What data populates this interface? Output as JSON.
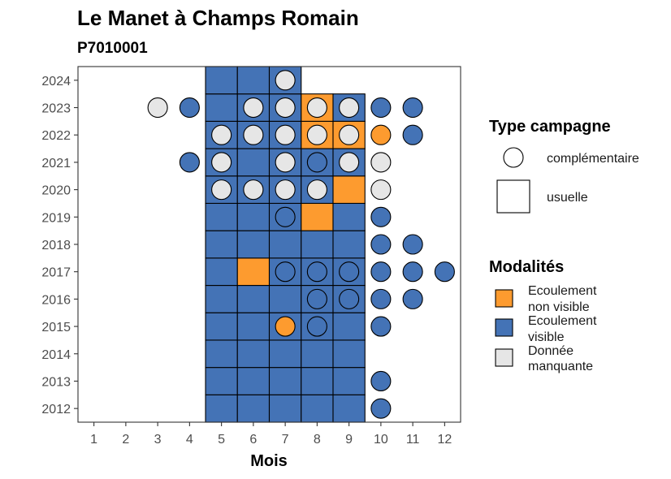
{
  "chart_data": {
    "type": "heatmap",
    "title": "Le Manet à Champs Romain",
    "subtitle": "P7010001",
    "xlabel": "Mois",
    "ylabel": "",
    "x_ticks": [
      "1",
      "2",
      "3",
      "4",
      "5",
      "6",
      "7",
      "8",
      "9",
      "10",
      "11",
      "12"
    ],
    "y_ticks": [
      "2012",
      "2013",
      "2014",
      "2015",
      "2016",
      "2017",
      "2018",
      "2019",
      "2020",
      "2021",
      "2022",
      "2023",
      "2024"
    ],
    "xlim": [
      0.5,
      12.5
    ],
    "ylim": [
      2011.5,
      2024.5
    ],
    "grid": false,
    "legend_position": "right",
    "colors": {
      "ecoulement_non_visible": "#fd9b2f",
      "ecoulement_visible": "#4473b6",
      "donnee_manquante": "#e6e6e6"
    },
    "legend_type": {
      "title": "Type campagne",
      "items": [
        {
          "key": "complementaire",
          "label": "complémentaire",
          "shape": "circle"
        },
        {
          "key": "usuelle",
          "label": "usuelle",
          "shape": "square"
        }
      ]
    },
    "legend_modalites": {
      "title": "Modalités",
      "items": [
        {
          "key": "ecoulement_non_visible",
          "label_lines": [
            "Ecoulement",
            "non visible"
          ]
        },
        {
          "key": "ecoulement_visible",
          "label_lines": [
            "Ecoulement",
            "visible"
          ]
        },
        {
          "key": "donnee_manquante",
          "label_lines": [
            "Donnée",
            "manquante"
          ]
        }
      ]
    },
    "usuelle": [
      {
        "year": 2012,
        "month": 5,
        "m": "ecoulement_visible"
      },
      {
        "year": 2012,
        "month": 6,
        "m": "ecoulement_visible"
      },
      {
        "year": 2012,
        "month": 7,
        "m": "ecoulement_visible"
      },
      {
        "year": 2012,
        "month": 8,
        "m": "ecoulement_visible"
      },
      {
        "year": 2012,
        "month": 9,
        "m": "ecoulement_visible"
      },
      {
        "year": 2013,
        "month": 5,
        "m": "ecoulement_visible"
      },
      {
        "year": 2013,
        "month": 6,
        "m": "ecoulement_visible"
      },
      {
        "year": 2013,
        "month": 7,
        "m": "ecoulement_visible"
      },
      {
        "year": 2013,
        "month": 8,
        "m": "ecoulement_visible"
      },
      {
        "year": 2013,
        "month": 9,
        "m": "ecoulement_visible"
      },
      {
        "year": 2014,
        "month": 5,
        "m": "ecoulement_visible"
      },
      {
        "year": 2014,
        "month": 6,
        "m": "ecoulement_visible"
      },
      {
        "year": 2014,
        "month": 7,
        "m": "ecoulement_visible"
      },
      {
        "year": 2014,
        "month": 8,
        "m": "ecoulement_visible"
      },
      {
        "year": 2014,
        "month": 9,
        "m": "ecoulement_visible"
      },
      {
        "year": 2015,
        "month": 5,
        "m": "ecoulement_visible"
      },
      {
        "year": 2015,
        "month": 6,
        "m": "ecoulement_visible"
      },
      {
        "year": 2015,
        "month": 7,
        "m": "ecoulement_visible"
      },
      {
        "year": 2015,
        "month": 8,
        "m": "ecoulement_visible"
      },
      {
        "year": 2015,
        "month": 9,
        "m": "ecoulement_visible"
      },
      {
        "year": 2016,
        "month": 5,
        "m": "ecoulement_visible"
      },
      {
        "year": 2016,
        "month": 6,
        "m": "ecoulement_visible"
      },
      {
        "year": 2016,
        "month": 7,
        "m": "ecoulement_visible"
      },
      {
        "year": 2016,
        "month": 8,
        "m": "ecoulement_visible"
      },
      {
        "year": 2016,
        "month": 9,
        "m": "ecoulement_visible"
      },
      {
        "year": 2017,
        "month": 5,
        "m": "ecoulement_visible"
      },
      {
        "year": 2017,
        "month": 6,
        "m": "ecoulement_non_visible"
      },
      {
        "year": 2017,
        "month": 7,
        "m": "ecoulement_visible"
      },
      {
        "year": 2017,
        "month": 8,
        "m": "ecoulement_visible"
      },
      {
        "year": 2017,
        "month": 9,
        "m": "ecoulement_visible"
      },
      {
        "year": 2018,
        "month": 5,
        "m": "ecoulement_visible"
      },
      {
        "year": 2018,
        "month": 6,
        "m": "ecoulement_visible"
      },
      {
        "year": 2018,
        "month": 7,
        "m": "ecoulement_visible"
      },
      {
        "year": 2018,
        "month": 8,
        "m": "ecoulement_visible"
      },
      {
        "year": 2018,
        "month": 9,
        "m": "ecoulement_visible"
      },
      {
        "year": 2019,
        "month": 5,
        "m": "ecoulement_visible"
      },
      {
        "year": 2019,
        "month": 6,
        "m": "ecoulement_visible"
      },
      {
        "year": 2019,
        "month": 7,
        "m": "ecoulement_visible"
      },
      {
        "year": 2019,
        "month": 8,
        "m": "ecoulement_non_visible"
      },
      {
        "year": 2019,
        "month": 9,
        "m": "ecoulement_visible"
      },
      {
        "year": 2020,
        "month": 5,
        "m": "ecoulement_visible"
      },
      {
        "year": 2020,
        "month": 6,
        "m": "ecoulement_visible"
      },
      {
        "year": 2020,
        "month": 7,
        "m": "ecoulement_visible"
      },
      {
        "year": 2020,
        "month": 8,
        "m": "ecoulement_visible"
      },
      {
        "year": 2020,
        "month": 9,
        "m": "ecoulement_non_visible"
      },
      {
        "year": 2021,
        "month": 5,
        "m": "ecoulement_visible"
      },
      {
        "year": 2021,
        "month": 6,
        "m": "ecoulement_visible"
      },
      {
        "year": 2021,
        "month": 7,
        "m": "ecoulement_visible"
      },
      {
        "year": 2021,
        "month": 8,
        "m": "ecoulement_visible"
      },
      {
        "year": 2021,
        "month": 9,
        "m": "ecoulement_visible"
      },
      {
        "year": 2022,
        "month": 5,
        "m": "ecoulement_visible"
      },
      {
        "year": 2022,
        "month": 6,
        "m": "ecoulement_visible"
      },
      {
        "year": 2022,
        "month": 7,
        "m": "ecoulement_visible"
      },
      {
        "year": 2022,
        "month": 8,
        "m": "ecoulement_non_visible"
      },
      {
        "year": 2022,
        "month": 9,
        "m": "ecoulement_non_visible"
      },
      {
        "year": 2023,
        "month": 5,
        "m": "ecoulement_visible"
      },
      {
        "year": 2023,
        "month": 6,
        "m": "ecoulement_visible"
      },
      {
        "year": 2023,
        "month": 7,
        "m": "ecoulement_visible"
      },
      {
        "year": 2023,
        "month": 8,
        "m": "ecoulement_non_visible"
      },
      {
        "year": 2023,
        "month": 9,
        "m": "ecoulement_visible"
      },
      {
        "year": 2024,
        "month": 5,
        "m": "ecoulement_visible"
      },
      {
        "year": 2024,
        "month": 6,
        "m": "ecoulement_visible"
      },
      {
        "year": 2024,
        "month": 7,
        "m": "ecoulement_visible"
      }
    ],
    "complementaire": [
      {
        "year": 2012,
        "month": 10,
        "m": "ecoulement_visible"
      },
      {
        "year": 2013,
        "month": 10,
        "m": "ecoulement_visible"
      },
      {
        "year": 2015,
        "month": 7,
        "m": "ecoulement_non_visible"
      },
      {
        "year": 2015,
        "month": 8,
        "m": "ecoulement_visible"
      },
      {
        "year": 2015,
        "month": 10,
        "m": "ecoulement_visible"
      },
      {
        "year": 2016,
        "month": 8,
        "m": "ecoulement_visible"
      },
      {
        "year": 2016,
        "month": 9,
        "m": "ecoulement_visible"
      },
      {
        "year": 2016,
        "month": 10,
        "m": "ecoulement_visible"
      },
      {
        "year": 2016,
        "month": 11,
        "m": "ecoulement_visible"
      },
      {
        "year": 2017,
        "month": 7,
        "m": "ecoulement_visible"
      },
      {
        "year": 2017,
        "month": 8,
        "m": "ecoulement_visible"
      },
      {
        "year": 2017,
        "month": 9,
        "m": "ecoulement_visible"
      },
      {
        "year": 2017,
        "month": 10,
        "m": "ecoulement_visible"
      },
      {
        "year": 2017,
        "month": 11,
        "m": "ecoulement_visible"
      },
      {
        "year": 2017,
        "month": 12,
        "m": "ecoulement_visible"
      },
      {
        "year": 2018,
        "month": 10,
        "m": "ecoulement_visible"
      },
      {
        "year": 2018,
        "month": 11,
        "m": "ecoulement_visible"
      },
      {
        "year": 2019,
        "month": 7,
        "m": "ecoulement_visible"
      },
      {
        "year": 2019,
        "month": 10,
        "m": "ecoulement_visible"
      },
      {
        "year": 2020,
        "month": 5,
        "m": "donnee_manquante"
      },
      {
        "year": 2020,
        "month": 6,
        "m": "donnee_manquante"
      },
      {
        "year": 2020,
        "month": 7,
        "m": "donnee_manquante"
      },
      {
        "year": 2020,
        "month": 8,
        "m": "donnee_manquante"
      },
      {
        "year": 2020,
        "month": 10,
        "m": "donnee_manquante"
      },
      {
        "year": 2021,
        "month": 4,
        "m": "ecoulement_visible"
      },
      {
        "year": 2021,
        "month": 5,
        "m": "donnee_manquante"
      },
      {
        "year": 2021,
        "month": 7,
        "m": "donnee_manquante"
      },
      {
        "year": 2021,
        "month": 8,
        "m": "ecoulement_visible"
      },
      {
        "year": 2021,
        "month": 9,
        "m": "donnee_manquante"
      },
      {
        "year": 2021,
        "month": 10,
        "m": "donnee_manquante"
      },
      {
        "year": 2022,
        "month": 5,
        "m": "donnee_manquante"
      },
      {
        "year": 2022,
        "month": 6,
        "m": "donnee_manquante"
      },
      {
        "year": 2022,
        "month": 7,
        "m": "donnee_manquante"
      },
      {
        "year": 2022,
        "month": 8,
        "m": "donnee_manquante"
      },
      {
        "year": 2022,
        "month": 9,
        "m": "donnee_manquante"
      },
      {
        "year": 2022,
        "month": 10,
        "m": "ecoulement_non_visible"
      },
      {
        "year": 2022,
        "month": 11,
        "m": "ecoulement_visible"
      },
      {
        "year": 2023,
        "month": 3,
        "m": "donnee_manquante"
      },
      {
        "year": 2023,
        "month": 4,
        "m": "ecoulement_visible"
      },
      {
        "year": 2023,
        "month": 6,
        "m": "donnee_manquante"
      },
      {
        "year": 2023,
        "month": 7,
        "m": "donnee_manquante"
      },
      {
        "year": 2023,
        "month": 8,
        "m": "donnee_manquante"
      },
      {
        "year": 2023,
        "month": 9,
        "m": "donnee_manquante"
      },
      {
        "year": 2023,
        "month": 10,
        "m": "ecoulement_visible"
      },
      {
        "year": 2023,
        "month": 11,
        "m": "ecoulement_visible"
      },
      {
        "year": 2024,
        "month": 7,
        "m": "donnee_manquante"
      }
    ]
  }
}
